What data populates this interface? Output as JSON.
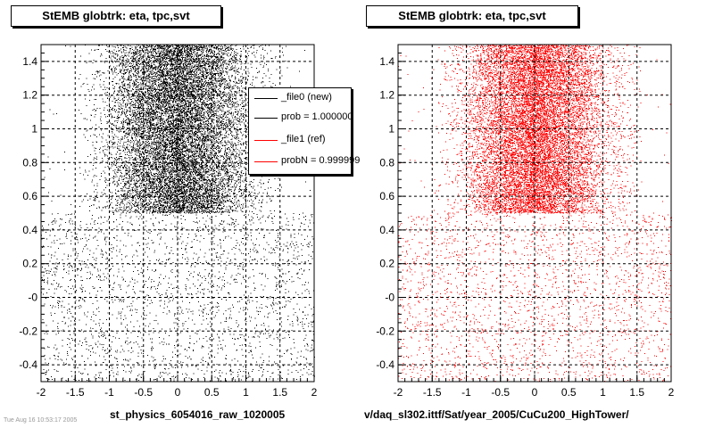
{
  "panels": [
    {
      "title": "StEMB globtrk: eta, tpc,svt",
      "xlabel": "st_physics_6054016_raw_1020005",
      "color": "#000000"
    },
    {
      "title": "StEMB globtrk: eta, tpc,svt",
      "xlabel": "v/daq_sl302.ittf/Sat/year_2005/CuCu200_HighTower/",
      "color": "#ff0000"
    }
  ],
  "legend": {
    "entries": [
      {
        "label": "_file0 (new)",
        "color": "#000000"
      },
      {
        "label": "prob = 1.000000",
        "color": "#000000"
      },
      {
        "label": "_file1 (ref)",
        "color": "#ff0000"
      },
      {
        "label": "probN = 0.999999",
        "color": "#ff0000"
      }
    ]
  },
  "footer": "Tue Aug 16 10:53:17 2005",
  "chart_data": [
    {
      "type": "scatter",
      "title": "StEMB globtrk: eta, tpc,svt",
      "xlabel": "st_physics_6054016_raw_1020005",
      "ylabel": "",
      "xlim": [
        -2,
        2
      ],
      "ylim": [
        -0.5,
        1.5
      ],
      "x_ticks": [
        "-2",
        "-1.5",
        "-1",
        "-0.5",
        "0",
        "0.5",
        "1",
        "1.5",
        "2"
      ],
      "y_ticks": [
        "-0.4",
        "-0.2",
        "-0",
        "0.2",
        "0.4",
        "0.6",
        "0.8",
        "1",
        "1.2",
        "1.4"
      ],
      "grid": true,
      "series": [
        {
          "color": "#000000",
          "description_regions": [
            {
              "x_range": [
                -1.05,
                1.05
              ],
              "y_range": [
                0.5,
                1.5
              ],
              "density": "very high"
            },
            {
              "x_range": [
                -1.5,
                1.6
              ],
              "y_range": [
                0.5,
                1.5
              ],
              "density": "high"
            },
            {
              "x_range": [
                -2,
                2
              ],
              "y_range": [
                -0.5,
                0.5
              ],
              "density": "low"
            }
          ]
        }
      ]
    },
    {
      "type": "scatter",
      "title": "StEMB globtrk: eta, tpc,svt",
      "xlabel": "v/daq_sl302.ittf/Sat/year_2005/CuCu200_HighTower/",
      "ylabel": "",
      "xlim": [
        -2,
        2
      ],
      "ylim": [
        -0.5,
        1.5
      ],
      "x_ticks": [
        "-2",
        "-1.5",
        "-1",
        "-0.5",
        "0",
        "0.5",
        "1",
        "1.5",
        "2"
      ],
      "y_ticks": [
        "-0.4",
        "-0.2",
        "-0",
        "0.2",
        "0.4",
        "0.6",
        "0.8",
        "1",
        "1.2",
        "1.4"
      ],
      "grid": true,
      "series": [
        {
          "color": "#ff0000",
          "description_regions": [
            {
              "x_range": [
                -1.05,
                1.05
              ],
              "y_range": [
                0.5,
                1.5
              ],
              "density": "very high"
            },
            {
              "x_range": [
                -1.5,
                1.6
              ],
              "y_range": [
                0.5,
                1.5
              ],
              "density": "high"
            },
            {
              "x_range": [
                -2,
                2
              ],
              "y_range": [
                -0.5,
                0.5
              ],
              "density": "low"
            }
          ]
        }
      ]
    }
  ]
}
